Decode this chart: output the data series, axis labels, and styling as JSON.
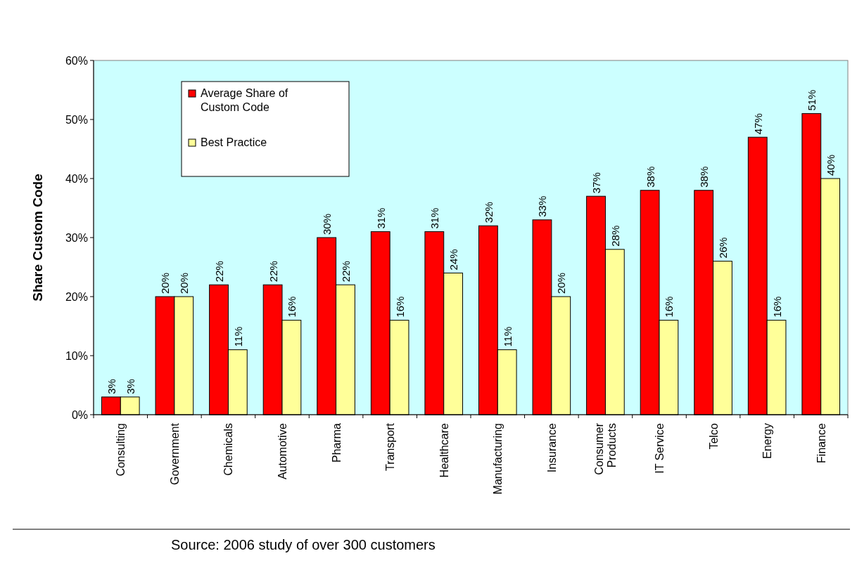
{
  "chart_data": {
    "type": "bar",
    "ylabel": "Share Custom Code",
    "categories": [
      "Consulting",
      "Government",
      "Chemicals",
      "Automotive",
      "Pharma",
      "Transport",
      "Healthcare",
      "Manufacturing",
      "Insurance",
      "Consumer Products",
      "IT Service",
      "Telco",
      "Energy",
      "Finance"
    ],
    "series": [
      {
        "name": "Average Share of Custom Code",
        "color": "#ff0000",
        "values": [
          3,
          20,
          22,
          22,
          30,
          31,
          31,
          32,
          33,
          37,
          38,
          38,
          47,
          51
        ],
        "value_labels": [
          "3%",
          "20%",
          "22%",
          "22%",
          "30%",
          "31%",
          "31%",
          "32%",
          "33%",
          "37%",
          "38%",
          "38%",
          "47%",
          "51%"
        ]
      },
      {
        "name": "Best Practice",
        "color": "#ffff99",
        "values": [
          3,
          20,
          11,
          16,
          22,
          16,
          24,
          11,
          20,
          28,
          16,
          26,
          16,
          40
        ],
        "value_labels": [
          "3%",
          "20%",
          "11%",
          "16%",
          "22%",
          "16%",
          "24%",
          "11%",
          "20%",
          "28%",
          "16%",
          "26%",
          "16%",
          "40%"
        ]
      }
    ],
    "ylim": [
      0,
      60
    ],
    "yticks": [
      {
        "value": 0,
        "label": "0%"
      },
      {
        "value": 10,
        "label": "10%"
      },
      {
        "value": 20,
        "label": "20%"
      },
      {
        "value": 30,
        "label": "30%"
      },
      {
        "value": 40,
        "label": "40%"
      },
      {
        "value": 50,
        "label": "50%"
      },
      {
        "value": 60,
        "label": "60%"
      }
    ],
    "grid": false,
    "legend": "top left",
    "annotations": [
      "Source: 2006 study of over 300 customers"
    ]
  }
}
